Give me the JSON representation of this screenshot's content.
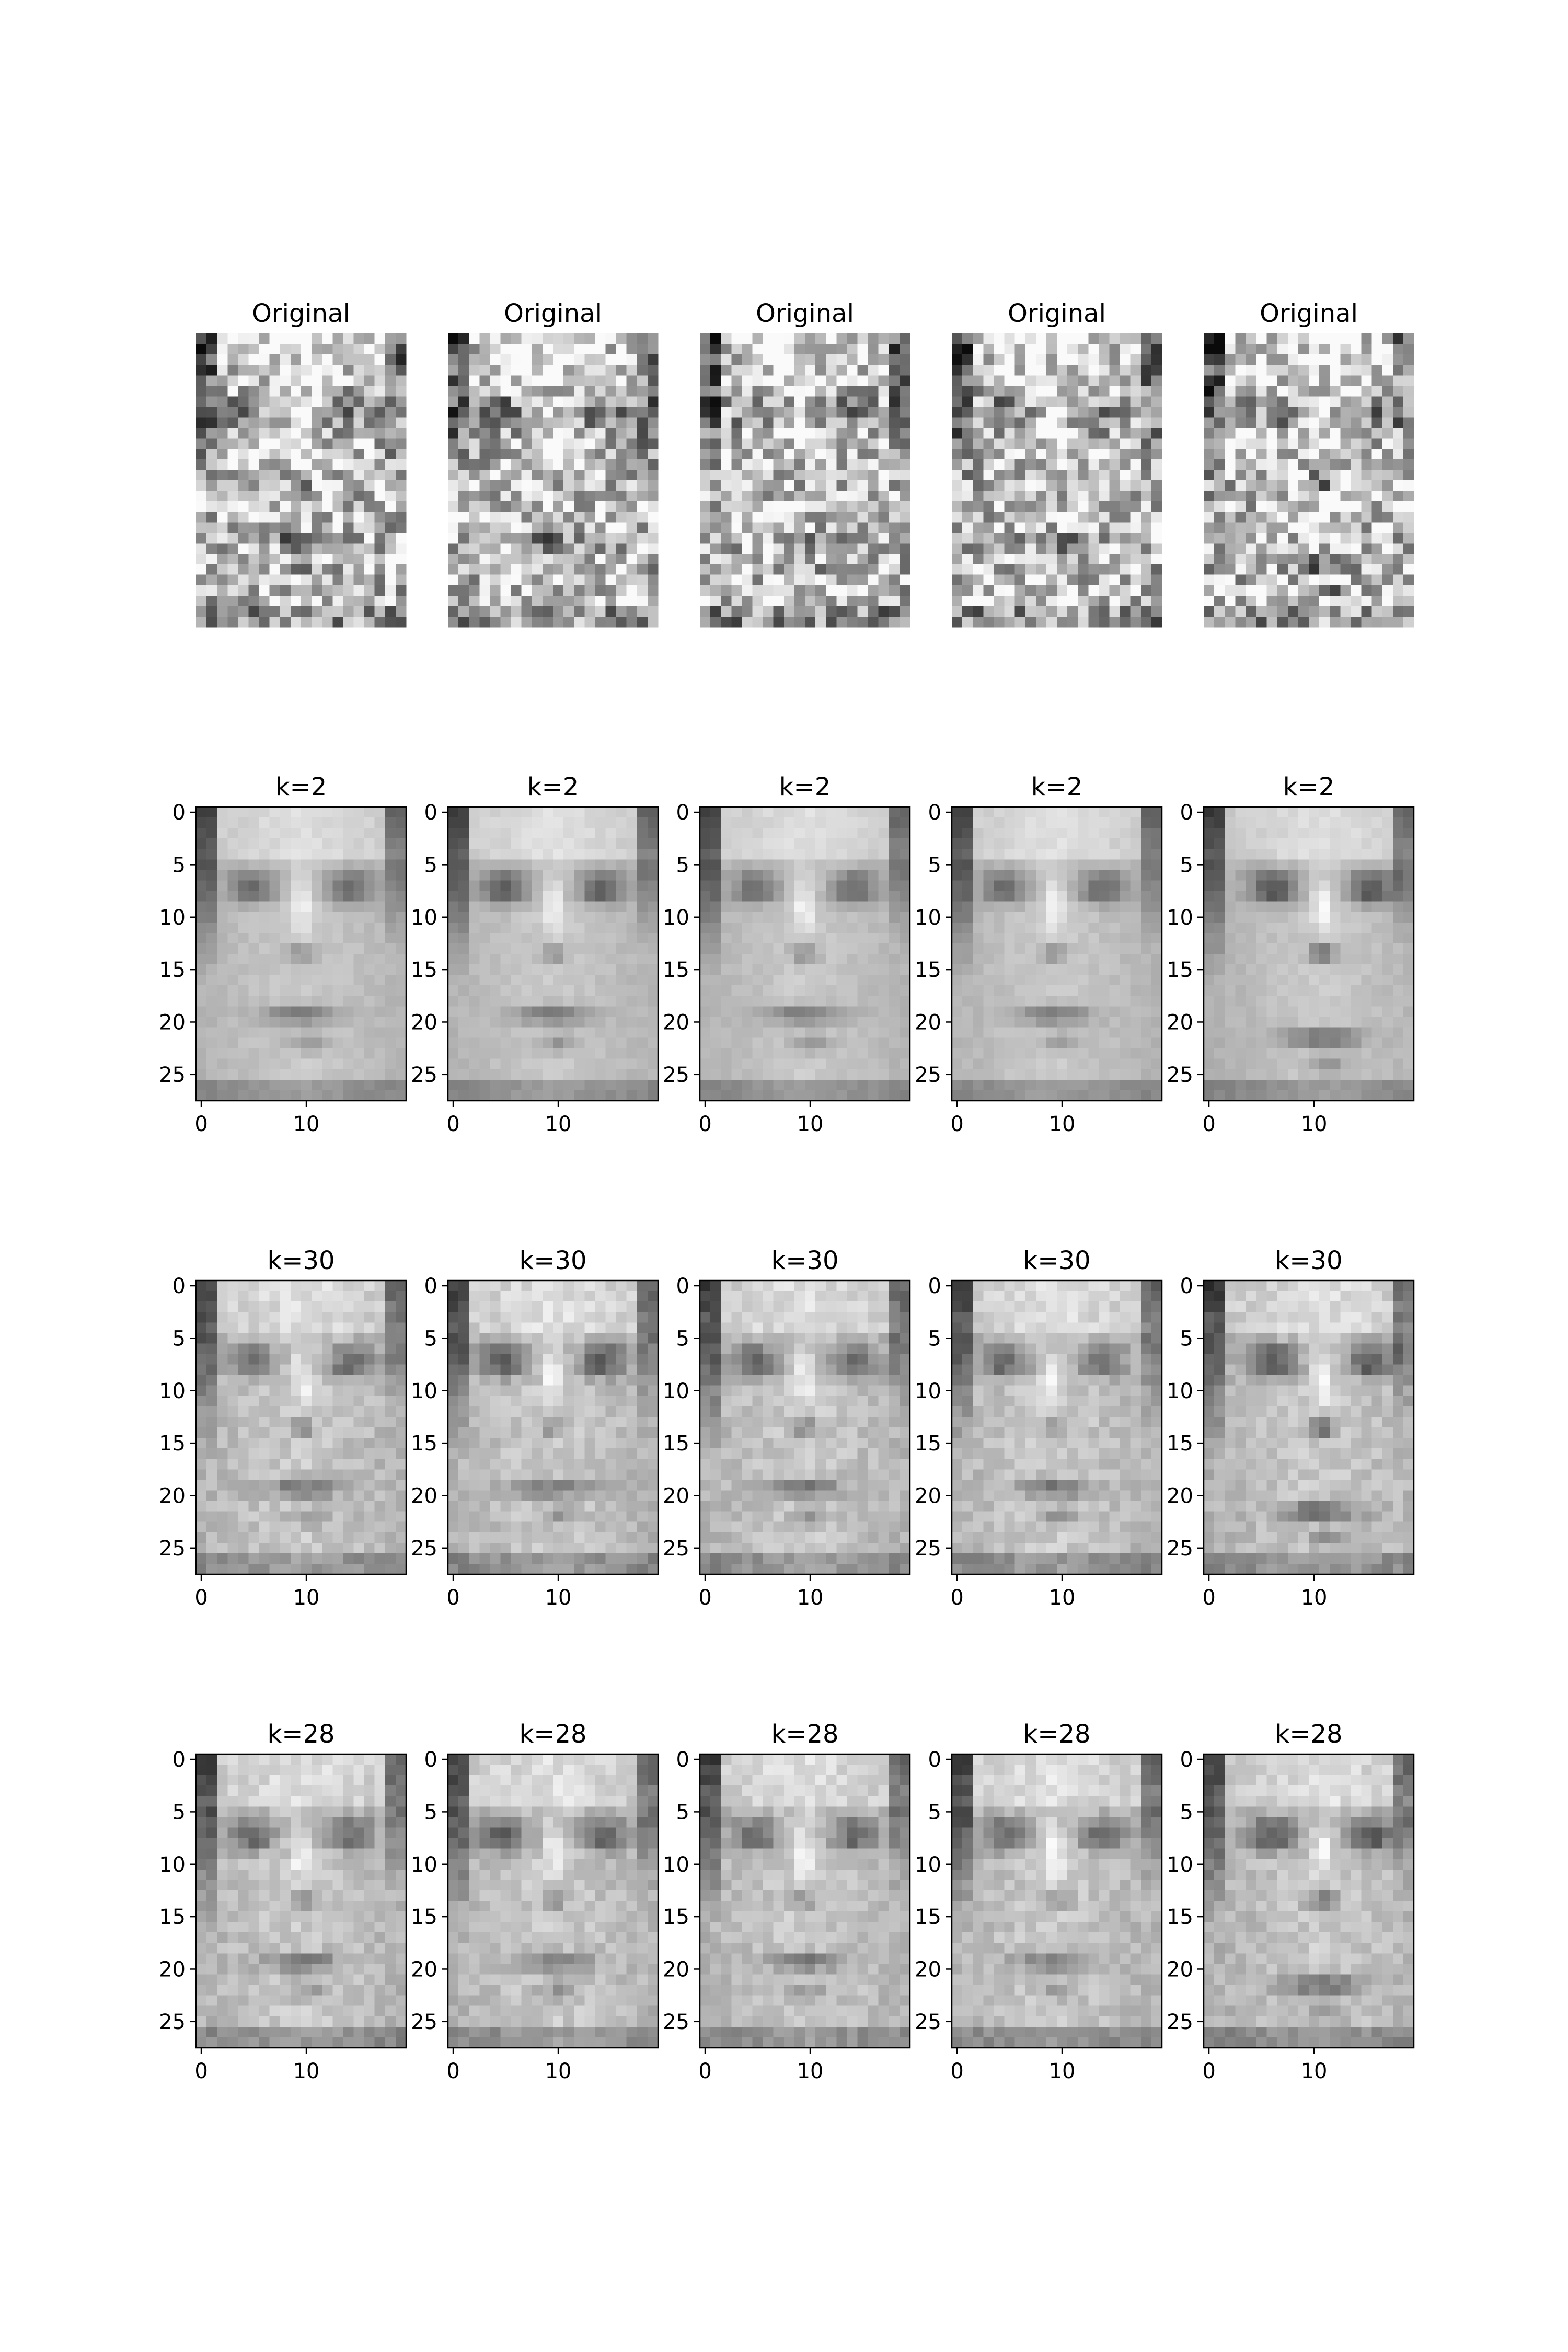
{
  "chart_data": {
    "type": "image_grid",
    "colormap": "gray",
    "image_shape": [
      28,
      20
    ],
    "rows": [
      {
        "title": "Original",
        "show_axes": false,
        "x_ticks": [],
        "y_ticks": [],
        "panels": 5
      },
      {
        "title": "k=2",
        "show_axes": true,
        "x_ticks": [
          "0",
          "10"
        ],
        "y_ticks": [
          "0",
          "5",
          "10",
          "15",
          "20",
          "25"
        ],
        "panels": 5
      },
      {
        "title": "k=30",
        "show_axes": true,
        "x_ticks": [
          "0",
          "10"
        ],
        "y_ticks": [
          "0",
          "5",
          "10",
          "15",
          "20",
          "25"
        ],
        "panels": 5
      },
      {
        "title": "k=28",
        "show_axes": true,
        "x_ticks": [
          "0",
          "10"
        ],
        "y_ticks": [
          "0",
          "5",
          "10",
          "15",
          "20",
          "25"
        ],
        "panels": 5
      }
    ]
  }
}
